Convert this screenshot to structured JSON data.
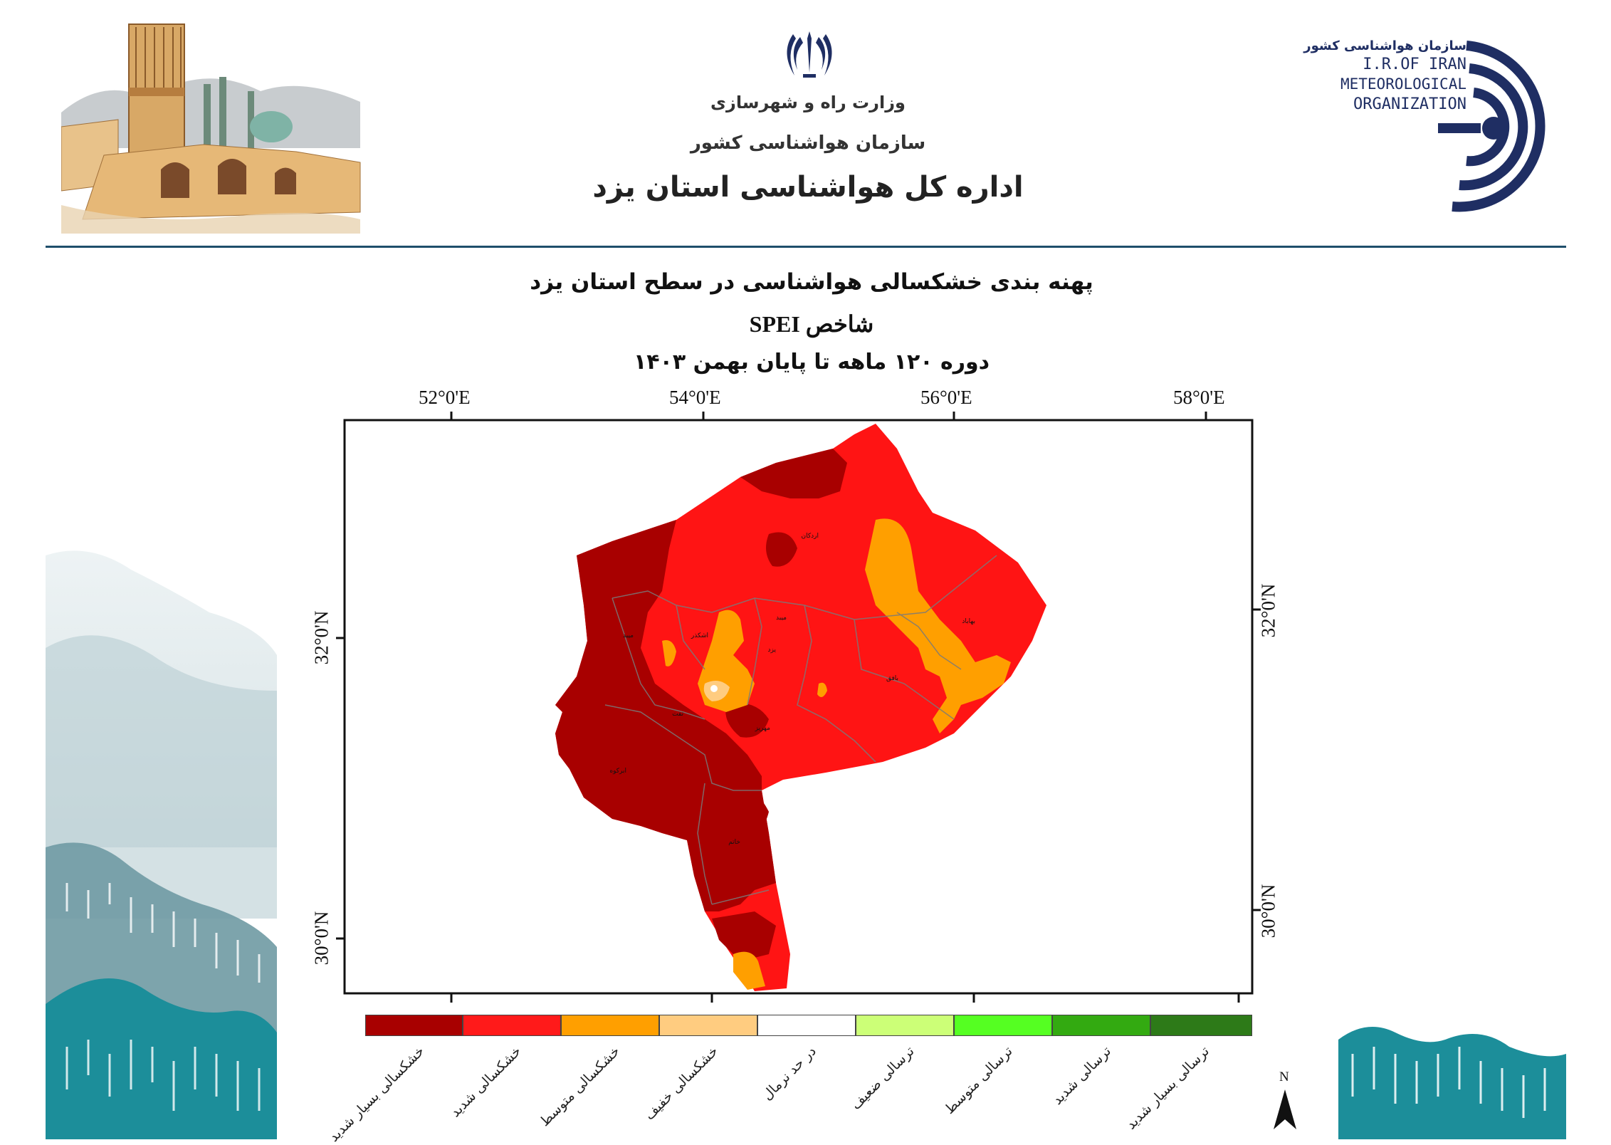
{
  "header": {
    "ministry": "وزارت راه و شهرسازی",
    "organization": "سازمان هواشناسی کشور",
    "office": "اداره کل هواشناسی استان یزد",
    "logo_right": {
      "fa": "سازمان هواشناسی کشور",
      "en_lines": [
        "I.R.OF IRAN",
        "METEOROLOGICAL",
        "ORGANIZATION"
      ]
    }
  },
  "map": {
    "title": "پهنه بندی خشکسالی هواشناسی در سطح استان یزد",
    "index": "شاخص SPEI",
    "period": "دوره ۱۲۰ ماهه تا پایان بهمن ۱۴۰۳",
    "lon_ticks": [
      "52°0'E",
      "54°0'E",
      "56°0'E",
      "58°0'E"
    ],
    "lat_ticks": [
      "32°0'N",
      "30°0'N"
    ],
    "north": "N",
    "legend": [
      {
        "label": "خشکسالی بسیار شدید",
        "color": "#a80000"
      },
      {
        "label": "خشکسالی شدید",
        "color": "#ff1a1a"
      },
      {
        "label": "خشکسالی متوسط",
        "color": "#ff9f00"
      },
      {
        "label": "خشکسالی خفیف",
        "color": "#ffcc80"
      },
      {
        "label": "در حد نرمال",
        "color": "#ffffff"
      },
      {
        "label": "ترسالی ضعیف",
        "color": "#ccff77"
      },
      {
        "label": "ترسالی متوسط",
        "color": "#55ff22"
      },
      {
        "label": "ترسالی شدید",
        "color": "#33aa11"
      },
      {
        "label": "ترسالی بسیار شدید",
        "color": "#2d7a18"
      }
    ],
    "county_labels": [
      "اردکان",
      "بهاباد",
      "اشکذر",
      "میبد",
      "یزد",
      "تفت",
      "مهریز",
      "بافق",
      "ابرکوه",
      "خاتم",
      "میبد"
    ]
  }
}
